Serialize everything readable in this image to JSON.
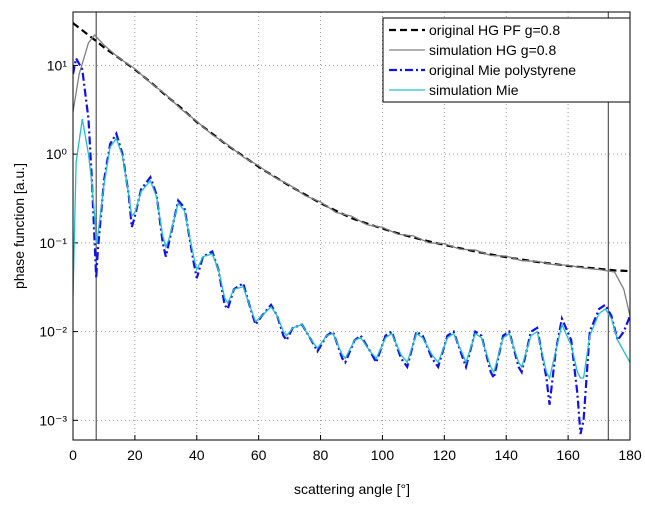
{
  "chart_data": {
    "type": "line",
    "xlabel": "scattering angle [°]",
    "ylabel": "phase function [a.u.]",
    "xlim": [
      0,
      180
    ],
    "xticks": [
      0,
      20,
      40,
      60,
      80,
      100,
      120,
      140,
      160,
      180
    ],
    "ylim": [
      0.0006,
      40
    ],
    "yscale": "log",
    "yticks": [
      {
        "value": 0.001,
        "label": "10⁻³"
      },
      {
        "value": 0.01,
        "label": "10⁻²"
      },
      {
        "value": 0.1,
        "label": "10⁻¹"
      },
      {
        "value": 1,
        "label": "10⁰"
      },
      {
        "value": 10,
        "label": "10¹"
      }
    ],
    "grid": true,
    "legend": "upper right",
    "vlines": [
      7.5,
      173
    ],
    "vline_color": "#555555",
    "series": [
      {
        "name": "original HG PF g=0.8",
        "color": "#000000",
        "linestyle": "--",
        "x": [
          0,
          5,
          10,
          15,
          20,
          25,
          30,
          35,
          40,
          45,
          50,
          55,
          60,
          65,
          70,
          75,
          80,
          85,
          90,
          95,
          100,
          105,
          110,
          115,
          120,
          125,
          130,
          135,
          140,
          145,
          150,
          155,
          160,
          165,
          170,
          175,
          180
        ],
        "values": [
          30,
          22,
          16,
          12,
          9,
          6.5,
          4.6,
          3.3,
          2.3,
          1.7,
          1.25,
          0.95,
          0.72,
          0.56,
          0.44,
          0.35,
          0.28,
          0.23,
          0.19,
          0.165,
          0.145,
          0.128,
          0.115,
          0.104,
          0.095,
          0.087,
          0.08,
          0.074,
          0.069,
          0.065,
          0.061,
          0.058,
          0.055,
          0.053,
          0.051,
          0.049,
          0.048
        ]
      },
      {
        "name": "simulation HG g=0.8",
        "color": "#808080",
        "linestyle": "-",
        "x": [
          0,
          2,
          5,
          7,
          10,
          15,
          20,
          25,
          30,
          35,
          40,
          45,
          50,
          55,
          60,
          65,
          70,
          75,
          80,
          85,
          90,
          95,
          100,
          105,
          110,
          115,
          120,
          125,
          130,
          135,
          140,
          145,
          150,
          155,
          160,
          165,
          170,
          175,
          178,
          180
        ],
        "values": [
          3,
          8,
          18,
          22,
          17,
          12,
          9.2,
          6.4,
          4.7,
          3.2,
          2.35,
          1.65,
          1.28,
          0.93,
          0.74,
          0.55,
          0.45,
          0.34,
          0.29,
          0.22,
          0.2,
          0.16,
          0.15,
          0.125,
          0.12,
          0.1,
          0.098,
          0.085,
          0.083,
          0.072,
          0.071,
          0.063,
          0.062,
          0.057,
          0.056,
          0.052,
          0.05,
          0.047,
          0.03,
          0.015
        ]
      },
      {
        "name": "original Mie polystyrene",
        "color": "#1010ee",
        "linestyle": "-.",
        "x": [
          0,
          1,
          3,
          5,
          6,
          7,
          7.5,
          8,
          10,
          12,
          14,
          16,
          18,
          19,
          20,
          22,
          25,
          27,
          29,
          30,
          31,
          34,
          36,
          39,
          40,
          42,
          45,
          47,
          49,
          50,
          52,
          55,
          57,
          59,
          61,
          64,
          66,
          68,
          69,
          71,
          74,
          77,
          79,
          82,
          84,
          87,
          88,
          91,
          93,
          96,
          98,
          101,
          103,
          106,
          108,
          111,
          113,
          116,
          118,
          121,
          123,
          126,
          127,
          130,
          132,
          135,
          136,
          139,
          141,
          144,
          145,
          148,
          150,
          153,
          154,
          156,
          158,
          161,
          163,
          164,
          165,
          167,
          170,
          172,
          174,
          176,
          178,
          180
        ],
        "values": [
          8,
          12,
          9,
          2.5,
          0.6,
          0.1,
          0.04,
          0.08,
          0.5,
          1.3,
          1.7,
          1.0,
          0.35,
          0.15,
          0.2,
          0.4,
          0.55,
          0.35,
          0.1,
          0.07,
          0.1,
          0.3,
          0.25,
          0.06,
          0.04,
          0.07,
          0.08,
          0.05,
          0.02,
          0.018,
          0.03,
          0.035,
          0.02,
          0.012,
          0.015,
          0.02,
          0.015,
          0.009,
          0.008,
          0.011,
          0.012,
          0.008,
          0.006,
          0.009,
          0.01,
          0.005,
          0.0045,
          0.008,
          0.009,
          0.006,
          0.0045,
          0.009,
          0.01,
          0.005,
          0.004,
          0.01,
          0.009,
          0.005,
          0.004,
          0.009,
          0.01,
          0.005,
          0.004,
          0.01,
          0.009,
          0.0035,
          0.003,
          0.009,
          0.01,
          0.004,
          0.0035,
          0.01,
          0.011,
          0.003,
          0.0015,
          0.006,
          0.014,
          0.008,
          0.002,
          0.0007,
          0.001,
          0.01,
          0.018,
          0.02,
          0.015,
          0.008,
          0.01,
          0.015
        ]
      },
      {
        "name": "simulation Mie",
        "color": "#20c0c8",
        "linestyle": "-",
        "x": [
          0,
          1,
          3,
          5,
          6,
          7,
          7.5,
          8,
          10,
          12,
          14,
          16,
          18,
          19,
          20,
          22,
          25,
          27,
          29,
          30,
          31,
          34,
          36,
          39,
          40,
          42,
          45,
          47,
          49,
          50,
          52,
          55,
          57,
          59,
          61,
          64,
          66,
          68,
          69,
          71,
          74,
          77,
          79,
          82,
          84,
          87,
          88,
          91,
          93,
          96,
          98,
          101,
          103,
          106,
          108,
          111,
          113,
          116,
          118,
          121,
          123,
          126,
          127,
          130,
          132,
          135,
          136,
          139,
          141,
          144,
          145,
          148,
          150,
          153,
          154,
          156,
          158,
          161,
          163,
          164,
          165,
          167,
          170,
          172,
          174,
          176,
          178,
          180
        ],
        "values": [
          0.025,
          0.8,
          2.5,
          1.0,
          0.5,
          0.2,
          0.1,
          0.12,
          0.45,
          1.2,
          1.5,
          0.95,
          0.35,
          0.2,
          0.22,
          0.38,
          0.5,
          0.33,
          0.12,
          0.09,
          0.11,
          0.28,
          0.23,
          0.07,
          0.05,
          0.07,
          0.075,
          0.05,
          0.024,
          0.021,
          0.03,
          0.032,
          0.02,
          0.013,
          0.015,
          0.019,
          0.015,
          0.01,
          0.009,
          0.011,
          0.012,
          0.008,
          0.0065,
          0.009,
          0.0095,
          0.0055,
          0.005,
          0.008,
          0.0085,
          0.006,
          0.005,
          0.0085,
          0.0095,
          0.0055,
          0.0045,
          0.0095,
          0.0085,
          0.0055,
          0.0045,
          0.0085,
          0.0095,
          0.0055,
          0.0045,
          0.0095,
          0.0085,
          0.004,
          0.0035,
          0.0085,
          0.0095,
          0.0045,
          0.004,
          0.009,
          0.01,
          0.0035,
          0.003,
          0.006,
          0.012,
          0.007,
          0.0035,
          0.003,
          0.003,
          0.009,
          0.016,
          0.018,
          0.014,
          0.008,
          0.006,
          0.0045
        ]
      }
    ]
  }
}
